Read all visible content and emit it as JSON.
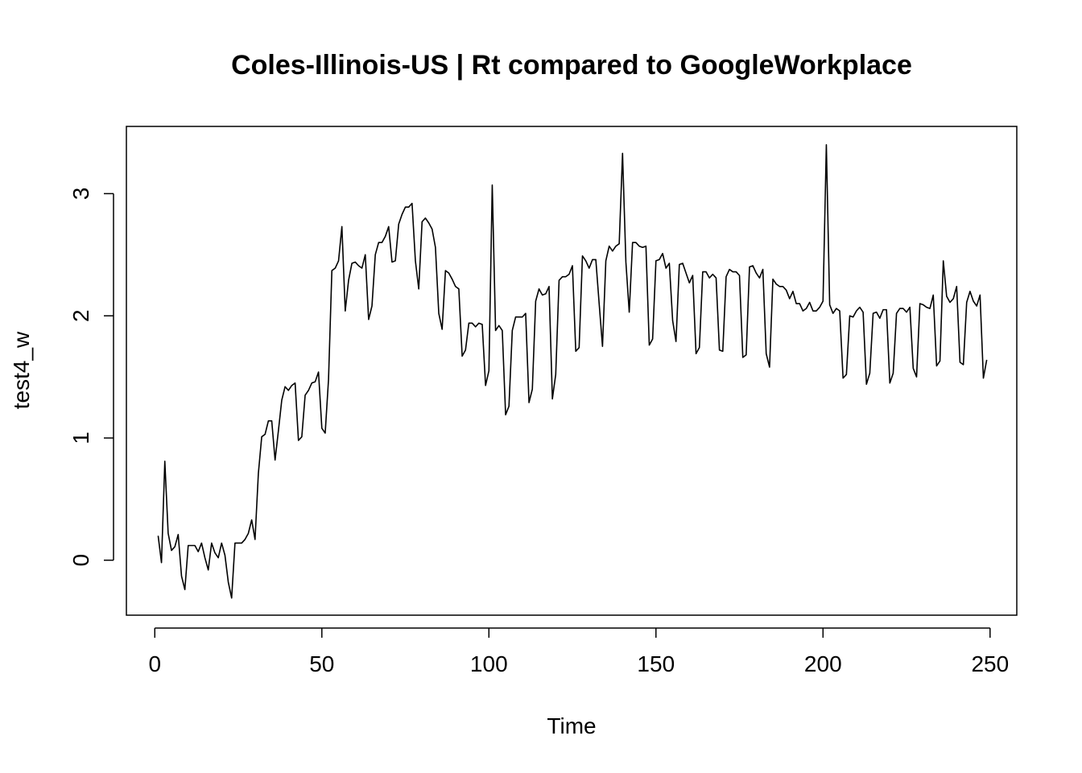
{
  "chart_data": {
    "type": "line",
    "title": "Coles-Illinois-US | Rt compared to GoogleWorkplace",
    "xlabel": "Time",
    "ylabel": "test4_w",
    "xlim": [
      -8.5,
      258
    ],
    "ylim": [
      -0.45,
      3.55
    ],
    "xticks": [
      0,
      50,
      100,
      150,
      200,
      250
    ],
    "yticks": [
      0,
      1,
      2,
      3
    ],
    "grid": false,
    "legend": "none",
    "line_color": "#000000",
    "x_start": 1,
    "series": [
      {
        "values": [
          0.2,
          -0.02,
          0.81,
          0.22,
          0.08,
          0.11,
          0.21,
          -0.13,
          -0.24,
          0.12,
          0.12,
          0.12,
          0.07,
          0.14,
          0.02,
          -0.08,
          0.14,
          0.06,
          0.02,
          0.14,
          0.04,
          -0.18,
          -0.31,
          0.14,
          0.14,
          0.14,
          0.17,
          0.22,
          0.33,
          0.17,
          0.71,
          1.01,
          1.03,
          1.14,
          1.14,
          0.82,
          1.06,
          1.31,
          1.42,
          1.39,
          1.43,
          1.45,
          0.98,
          1.01,
          1.35,
          1.39,
          1.45,
          1.46,
          1.54,
          1.08,
          1.04,
          1.48,
          2.37,
          2.39,
          2.45,
          2.73,
          2.04,
          2.29,
          2.43,
          2.44,
          2.41,
          2.39,
          2.5,
          1.97,
          2.08,
          2.5,
          2.6,
          2.6,
          2.65,
          2.73,
          2.44,
          2.45,
          2.75,
          2.83,
          2.89,
          2.89,
          2.92,
          2.45,
          2.22,
          2.77,
          2.8,
          2.76,
          2.71,
          2.56,
          2.02,
          1.89,
          2.37,
          2.35,
          2.3,
          2.24,
          2.22,
          1.67,
          1.72,
          1.94,
          1.94,
          1.91,
          1.94,
          1.93,
          1.43,
          1.55,
          3.07,
          1.88,
          1.92,
          1.88,
          1.19,
          1.26,
          1.88,
          1.99,
          1.99,
          1.99,
          2.02,
          1.29,
          1.4,
          2.12,
          2.22,
          2.17,
          2.18,
          2.24,
          1.32,
          1.52,
          2.29,
          2.32,
          2.32,
          2.34,
          2.41,
          1.71,
          1.74,
          2.49,
          2.45,
          2.39,
          2.46,
          2.46,
          2.1,
          1.75,
          2.45,
          2.57,
          2.53,
          2.57,
          2.59,
          3.33,
          2.44,
          2.03,
          2.6,
          2.6,
          2.57,
          2.56,
          2.57,
          1.76,
          1.81,
          2.45,
          2.46,
          2.51,
          2.39,
          2.43,
          1.96,
          1.79,
          2.42,
          2.43,
          2.35,
          2.27,
          2.33,
          1.69,
          1.74,
          2.36,
          2.36,
          2.31,
          2.34,
          2.31,
          1.72,
          1.71,
          2.32,
          2.38,
          2.36,
          2.36,
          2.33,
          1.66,
          1.68,
          2.4,
          2.41,
          2.35,
          2.31,
          2.38,
          1.69,
          1.58,
          2.3,
          2.26,
          2.24,
          2.24,
          2.21,
          2.14,
          2.2,
          2.1,
          2.1,
          2.04,
          2.06,
          2.11,
          2.04,
          2.04,
          2.07,
          2.12,
          3.4,
          2.09,
          2.02,
          2.06,
          2.04,
          1.49,
          1.52,
          2.0,
          1.99,
          2.04,
          2.07,
          2.03,
          1.44,
          1.53,
          2.02,
          2.03,
          1.98,
          2.05,
          2.05,
          1.45,
          1.53,
          2.02,
          2.06,
          2.06,
          2.03,
          2.07,
          1.57,
          1.5,
          2.1,
          2.09,
          2.07,
          2.06,
          2.17,
          1.59,
          1.63,
          2.45,
          2.16,
          2.11,
          2.14,
          2.24,
          1.62,
          1.6,
          2.11,
          2.2,
          2.12,
          2.08,
          2.17,
          1.49,
          1.64
        ]
      }
    ]
  }
}
